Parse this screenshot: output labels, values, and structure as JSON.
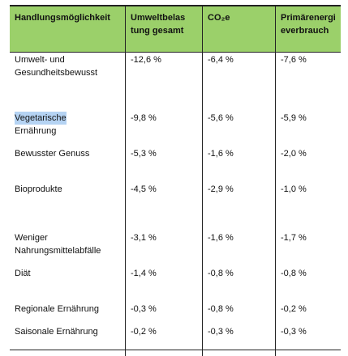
{
  "table": {
    "header": [
      [
        "Handlungsmöglichkeit"
      ],
      [
        "Umweltbelas",
        "tung gesamt"
      ],
      [
        "CO₂e"
      ],
      [
        "Primärenergi",
        "everbrauch"
      ]
    ],
    "rows": [
      {
        "label": [
          "Umwelt- und",
          "Gesundheitsbewusst"
        ],
        "values": [
          "-12,6 %",
          "-6,4 %",
          "-7,6 %"
        ]
      },
      {
        "label": [
          "Vegetarische",
          "Ernährung"
        ],
        "values": [
          "-9,8 %",
          "-5,6 %",
          "-5,9 %"
        ]
      },
      {
        "label": [
          "Bewusster Genuss"
        ],
        "values": [
          "-5,3 %",
          "-1,6 %",
          "-2,0 %"
        ]
      },
      {
        "label": [
          "Bioprodukte"
        ],
        "values": [
          "-4,5 %",
          "-2,9 %",
          "-1,0 %"
        ]
      },
      {
        "label": [
          "Weniger",
          "Nahrungsmittelabfälle"
        ],
        "values": [
          "-3,1 %",
          "-1,6 %",
          "-1,7 %"
        ]
      },
      {
        "label": [
          "Diät"
        ],
        "values": [
          "-1,4 %",
          "-0,8 %",
          "-0,8 %"
        ]
      },
      {
        "label": [
          "Regionale Ernährung"
        ],
        "values": [
          "-0,3 %",
          "-0,8 %",
          "-0,2 %"
        ]
      },
      {
        "label": [
          "Saisonale Ernährung"
        ],
        "values": [
          "-0,2 %",
          "-0,3 %",
          "-0,3 %"
        ]
      }
    ]
  }
}
